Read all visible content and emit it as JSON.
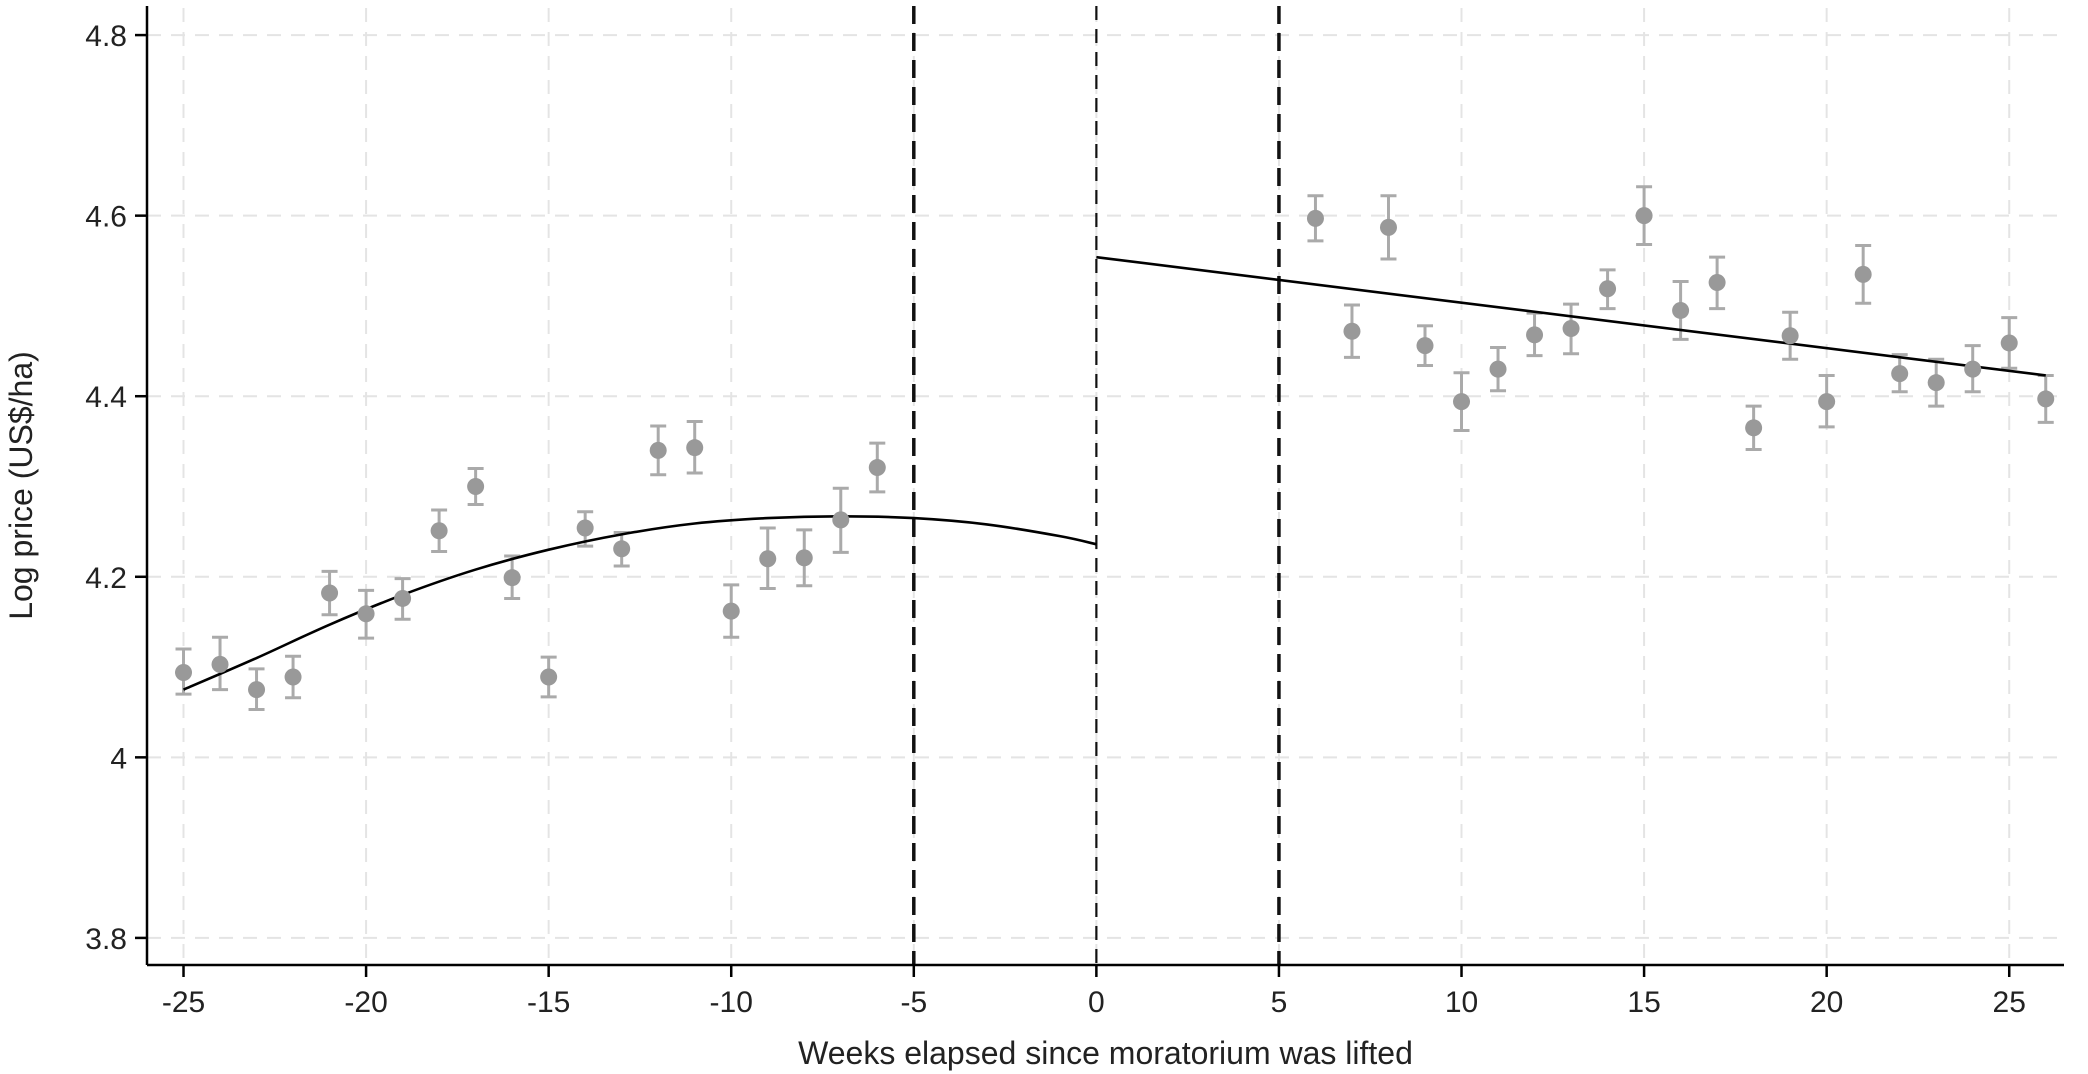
{
  "chart_data": {
    "type": "scatter",
    "title": "",
    "xlabel": "Weeks elapsed since moratorium was lifted",
    "ylabel": "Log price (US$/ha)",
    "xlim": [
      -26.0,
      26.5
    ],
    "ylim": [
      3.77,
      4.83
    ],
    "x_ticks": [
      -25,
      -20,
      -15,
      -10,
      -5,
      0,
      5,
      10,
      15,
      20,
      25
    ],
    "x_tick_labels": [
      "-25",
      "-20",
      "-15",
      "-10",
      "-5",
      "0",
      "5",
      "10",
      "15",
      "20",
      "25"
    ],
    "y_ticks": [
      3.8,
      4.0,
      4.2,
      4.4,
      4.6,
      4.8
    ],
    "y_tick_labels": [
      "3.8",
      "4",
      "4.2",
      "4.4",
      "4.6",
      "4.8"
    ],
    "grid": true,
    "legend": "none",
    "vertical_reference_lines": [
      -5,
      0,
      5
    ],
    "colors": {
      "points": "#999999",
      "error_bars": "#aaaaaa",
      "fit": "#000000",
      "grid": "#e4e4e4",
      "axes": "#000000"
    },
    "series": [
      {
        "kind": "binned-means-with-ci",
        "points": [
          {
            "x": -25,
            "y": 4.094,
            "lo": 4.07,
            "hi": 4.12
          },
          {
            "x": -24,
            "y": 4.103,
            "lo": 4.075,
            "hi": 4.133
          },
          {
            "x": -23,
            "y": 4.075,
            "lo": 4.053,
            "hi": 4.098
          },
          {
            "x": -22,
            "y": 4.089,
            "lo": 4.066,
            "hi": 4.112
          },
          {
            "x": -21,
            "y": 4.182,
            "lo": 4.158,
            "hi": 4.206
          },
          {
            "x": -20,
            "y": 4.159,
            "lo": 4.132,
            "hi": 4.185
          },
          {
            "x": -19,
            "y": 4.176,
            "lo": 4.153,
            "hi": 4.198
          },
          {
            "x": -18,
            "y": 4.251,
            "lo": 4.228,
            "hi": 4.274
          },
          {
            "x": -17,
            "y": 4.3,
            "lo": 4.28,
            "hi": 4.32
          },
          {
            "x": -16,
            "y": 4.199,
            "lo": 4.176,
            "hi": 4.223
          },
          {
            "x": -15,
            "y": 4.089,
            "lo": 4.067,
            "hi": 4.111
          },
          {
            "x": -14,
            "y": 4.254,
            "lo": 4.234,
            "hi": 4.272
          },
          {
            "x": -13,
            "y": 4.231,
            "lo": 4.212,
            "hi": 4.249
          },
          {
            "x": -12,
            "y": 4.34,
            "lo": 4.313,
            "hi": 4.367
          },
          {
            "x": -11,
            "y": 4.343,
            "lo": 4.315,
            "hi": 4.372
          },
          {
            "x": -10,
            "y": 4.162,
            "lo": 4.133,
            "hi": 4.191
          },
          {
            "x": -9,
            "y": 4.22,
            "lo": 4.187,
            "hi": 4.254
          },
          {
            "x": -8,
            "y": 4.221,
            "lo": 4.19,
            "hi": 4.252
          },
          {
            "x": -7,
            "y": 4.263,
            "lo": 4.227,
            "hi": 4.298
          },
          {
            "x": -6,
            "y": 4.321,
            "lo": 4.294,
            "hi": 4.348
          },
          {
            "x": 6,
            "y": 4.597,
            "lo": 4.572,
            "hi": 4.622
          },
          {
            "x": 7,
            "y": 4.472,
            "lo": 4.443,
            "hi": 4.501
          },
          {
            "x": 8,
            "y": 4.587,
            "lo": 4.552,
            "hi": 4.622
          },
          {
            "x": 9,
            "y": 4.456,
            "lo": 4.434,
            "hi": 4.478
          },
          {
            "x": 10,
            "y": 4.394,
            "lo": 4.362,
            "hi": 4.426
          },
          {
            "x": 11,
            "y": 4.43,
            "lo": 4.406,
            "hi": 4.454
          },
          {
            "x": 12,
            "y": 4.468,
            "lo": 4.445,
            "hi": 4.492
          },
          {
            "x": 13,
            "y": 4.475,
            "lo": 4.447,
            "hi": 4.502
          },
          {
            "x": 14,
            "y": 4.519,
            "lo": 4.497,
            "hi": 4.54
          },
          {
            "x": 15,
            "y": 4.6,
            "lo": 4.568,
            "hi": 4.632
          },
          {
            "x": 16,
            "y": 4.495,
            "lo": 4.463,
            "hi": 4.527
          },
          {
            "x": 17,
            "y": 4.526,
            "lo": 4.497,
            "hi": 4.554
          },
          {
            "x": 18,
            "y": 4.365,
            "lo": 4.341,
            "hi": 4.389
          },
          {
            "x": 19,
            "y": 4.467,
            "lo": 4.441,
            "hi": 4.493
          },
          {
            "x": 20,
            "y": 4.394,
            "lo": 4.366,
            "hi": 4.423
          },
          {
            "x": 21,
            "y": 4.535,
            "lo": 4.503,
            "hi": 4.567
          },
          {
            "x": 22,
            "y": 4.425,
            "lo": 4.405,
            "hi": 4.446
          },
          {
            "x": 23,
            "y": 4.415,
            "lo": 4.389,
            "hi": 4.441
          },
          {
            "x": 24,
            "y": 4.43,
            "lo": 4.405,
            "hi": 4.456
          },
          {
            "x": 25,
            "y": 4.459,
            "lo": 4.431,
            "hi": 4.487
          },
          {
            "x": 26,
            "y": 4.397,
            "lo": 4.371,
            "hi": 4.423
          }
        ]
      },
      {
        "kind": "fit-before",
        "line": [
          {
            "x": -25,
            "y": 4.075
          },
          {
            "x": -23,
            "y": 4.11
          },
          {
            "x": -21,
            "y": 4.147
          },
          {
            "x": -19,
            "y": 4.18
          },
          {
            "x": -17,
            "y": 4.208
          },
          {
            "x": -15,
            "y": 4.23
          },
          {
            "x": -13,
            "y": 4.247
          },
          {
            "x": -11,
            "y": 4.259
          },
          {
            "x": -9,
            "y": 4.265
          },
          {
            "x": -7,
            "y": 4.267
          },
          {
            "x": -5,
            "y": 4.265
          },
          {
            "x": -3,
            "y": 4.258
          },
          {
            "x": -1,
            "y": 4.245
          },
          {
            "x": 0,
            "y": 4.236
          }
        ]
      },
      {
        "kind": "fit-after",
        "line": [
          {
            "x": 0,
            "y": 4.554
          },
          {
            "x": 26,
            "y": 4.423
          }
        ]
      }
    ]
  }
}
